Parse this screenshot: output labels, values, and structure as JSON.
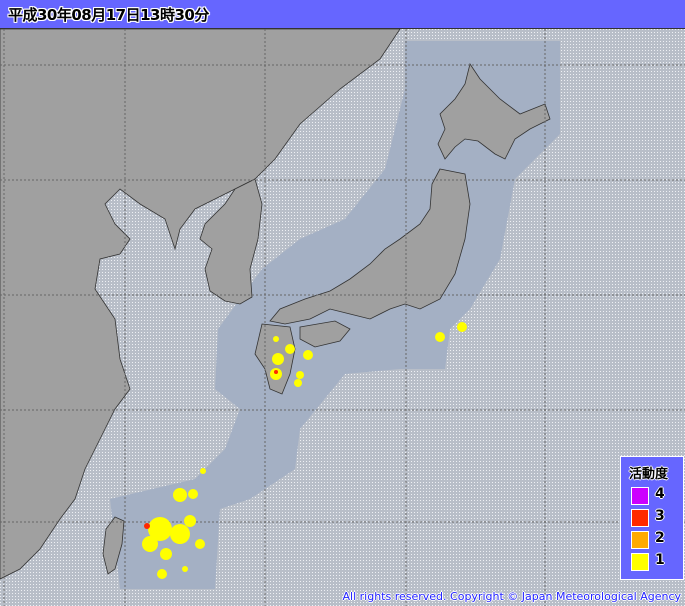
{
  "title": "平成30年08月17日13時30分",
  "legend": {
    "title": "活動度",
    "items": [
      {
        "label": "4",
        "color": "#cc00ff"
      },
      {
        "label": "3",
        "color": "#ff2800"
      },
      {
        "label": "2",
        "color": "#ffaa00"
      },
      {
        "label": "1",
        "color": "#ffff00"
      }
    ]
  },
  "copyright": "All rights reserved. Copyright © Japan Meteorological Agency",
  "colors": {
    "sea_area": "#a4b0c4",
    "outside": "#c4c8d0",
    "land": "#a0a0a0",
    "header": "#6666ff"
  }
}
